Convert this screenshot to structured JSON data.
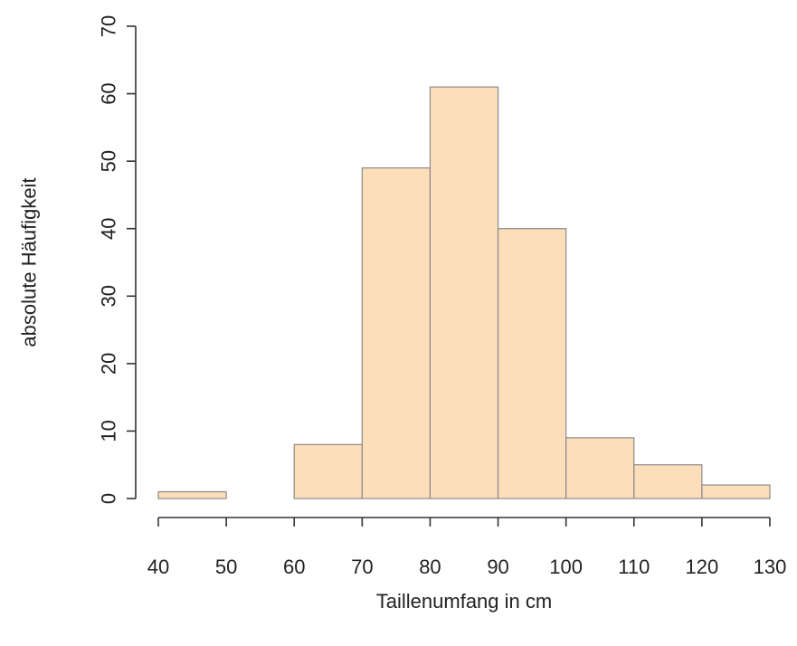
{
  "chart_data": {
    "type": "bar",
    "subtype": "histogram",
    "bins": [
      {
        "from": 40,
        "to": 50,
        "count": 1
      },
      {
        "from": 50,
        "to": 60,
        "count": 0
      },
      {
        "from": 60,
        "to": 70,
        "count": 8
      },
      {
        "from": 70,
        "to": 80,
        "count": 49
      },
      {
        "from": 80,
        "to": 90,
        "count": 61
      },
      {
        "from": 90,
        "to": 100,
        "count": 40
      },
      {
        "from": 100,
        "to": 110,
        "count": 9
      },
      {
        "from": 110,
        "to": 120,
        "count": 5
      },
      {
        "from": 120,
        "to": 130,
        "count": 2
      }
    ],
    "xlabel": "Taillenumfang in cm",
    "ylabel": "absolute Häufigkeit",
    "xlim": [
      40,
      130
    ],
    "ylim": [
      0,
      70
    ],
    "xticks": [
      "40",
      "50",
      "60",
      "70",
      "80",
      "90",
      "100",
      "110",
      "120",
      "130"
    ],
    "yticks": [
      "0",
      "10",
      "20",
      "30",
      "40",
      "50",
      "60",
      "70"
    ],
    "grid": false,
    "bar_color": "#FDDEBA",
    "bar_edge_color": "#8A8A8A"
  }
}
